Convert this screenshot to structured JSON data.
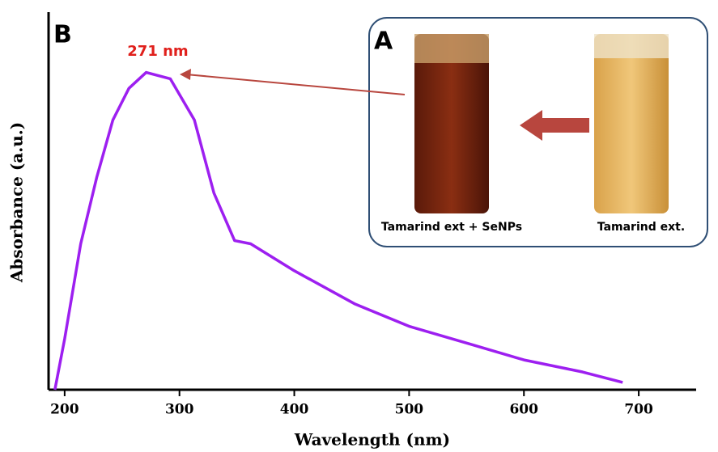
{
  "chart_data": {
    "type": "line",
    "panel_label": "B",
    "x_label": "Wavelength (nm)",
    "y_label": "Absorbance (a.u.)",
    "annotation": "271 nm",
    "inset": {
      "label": "A",
      "captions": [
        "Tamarind ext + SeNPs",
        "Tamarind ext."
      ]
    },
    "x": [
      191.5,
      200,
      214,
      228,
      242,
      256,
      271,
      292,
      313,
      330,
      348,
      362,
      400,
      453,
      500,
      552,
      600,
      651,
      686
    ],
    "series": [
      {
        "color": "#9d1ff0",
        "values": [
          0,
          0.16,
          0.46,
          0.67,
          0.85,
          0.95,
          1.0,
          0.98,
          0.85,
          0.62,
          0.47,
          0.46,
          0.375,
          0.27,
          0.2,
          0.145,
          0.094,
          0.056,
          0.023
        ]
      }
    ],
    "xlim": [
      186,
      750
    ],
    "xticks": [
      200,
      300,
      400,
      500,
      600,
      700
    ],
    "ylim": [
      0,
      1.19
    ]
  }
}
